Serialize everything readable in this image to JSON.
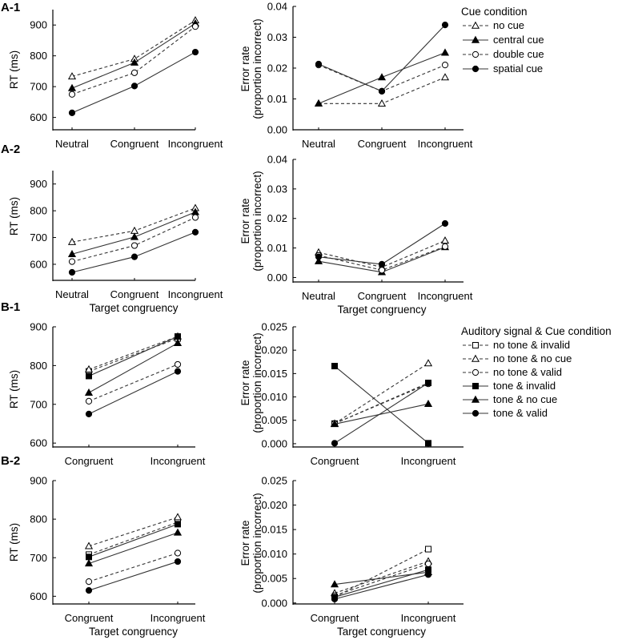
{
  "figure": {
    "legend_a": {
      "title": "Cue condition",
      "entries": [
        "no cue",
        "central cue",
        "double cue",
        "spatial cue"
      ]
    },
    "legend_b": {
      "title": "Auditory signal & Cue condition",
      "entries": [
        "no tone & invalid",
        "no tone & no cue",
        "no tone & valid",
        "tone & invalid",
        "tone & no cue",
        "tone & valid"
      ]
    },
    "series_styles": {
      "no cue": {
        "marker": "triangle",
        "filled": false,
        "dashed": true
      },
      "central cue": {
        "marker": "triangle",
        "filled": true,
        "dashed": false
      },
      "double cue": {
        "marker": "circle",
        "filled": false,
        "dashed": true
      },
      "spatial cue": {
        "marker": "circle",
        "filled": true,
        "dashed": false
      },
      "no tone & invalid": {
        "marker": "square",
        "filled": false,
        "dashed": true
      },
      "no tone & no cue": {
        "marker": "triangle",
        "filled": false,
        "dashed": true
      },
      "no tone & valid": {
        "marker": "circle",
        "filled": false,
        "dashed": true
      },
      "tone & invalid": {
        "marker": "square",
        "filled": true,
        "dashed": false
      },
      "tone & no cue": {
        "marker": "triangle",
        "filled": true,
        "dashed": false
      },
      "tone & valid": {
        "marker": "circle",
        "filled": true,
        "dashed": false
      }
    },
    "colors": {
      "line": "#333333",
      "marker": "#000000",
      "axis": "#000000",
      "background": "#ffffff"
    }
  },
  "chart_data": [
    {
      "id": "a1-rt",
      "panel_label": "A-1",
      "type": "line",
      "categories": [
        "Neutral",
        "Congruent",
        "Incongruent"
      ],
      "ylabel": [
        "RT (ms)"
      ],
      "xlabel": "",
      "ylim": [
        560,
        950
      ],
      "yticks": [
        600,
        700,
        800,
        900
      ],
      "ytick_labels": [
        "600",
        "700",
        "800",
        "900"
      ],
      "series": [
        {
          "name": "no cue",
          "values": [
            733,
            790,
            915
          ]
        },
        {
          "name": "central cue",
          "values": [
            695,
            778,
            905
          ]
        },
        {
          "name": "double cue",
          "values": [
            675,
            745,
            895
          ]
        },
        {
          "name": "spatial cue",
          "values": [
            615,
            702,
            812
          ]
        }
      ]
    },
    {
      "id": "a1-err",
      "type": "line",
      "categories": [
        "Neutral",
        "Congruent",
        "Incongruent"
      ],
      "ylabel": [
        "Error rate",
        "(proportion incorrect)"
      ],
      "xlabel": "",
      "ylim": [
        0,
        0.04
      ],
      "yticks": [
        0,
        0.01,
        0.02,
        0.03,
        0.04
      ],
      "ytick_labels": [
        "0.00",
        "0.01",
        "0.02",
        "0.03",
        "0.04"
      ],
      "series": [
        {
          "name": "no cue",
          "values": [
            0.0085,
            0.0085,
            0.017
          ]
        },
        {
          "name": "central cue",
          "values": [
            0.0085,
            0.017,
            0.025
          ]
        },
        {
          "name": "double cue",
          "values": [
            0.021,
            0.0125,
            0.021
          ]
        },
        {
          "name": "spatial cue",
          "values": [
            0.0213,
            0.0125,
            0.034
          ]
        }
      ]
    },
    {
      "id": "a2-rt",
      "panel_label": "A-2",
      "type": "line",
      "categories": [
        "Neutral",
        "Congruent",
        "Incongruent"
      ],
      "ylabel": [
        "RT (ms)"
      ],
      "xlabel": "Target congruency",
      "ylim": [
        540,
        950
      ],
      "yticks": [
        600,
        700,
        800,
        900
      ],
      "ytick_labels": [
        "600",
        "700",
        "800",
        "900"
      ],
      "series": [
        {
          "name": "no cue",
          "values": [
            683,
            725,
            810
          ]
        },
        {
          "name": "central cue",
          "values": [
            638,
            702,
            795
          ]
        },
        {
          "name": "double cue",
          "values": [
            610,
            670,
            775
          ]
        },
        {
          "name": "spatial cue",
          "values": [
            570,
            628,
            720
          ]
        }
      ]
    },
    {
      "id": "a2-err",
      "type": "line",
      "categories": [
        "Neutral",
        "Congruent",
        "Incongruent"
      ],
      "ylabel": [
        "Error rate",
        "(proportion incorrect)"
      ],
      "xlabel": "Target congruency",
      "ylim": [
        -0.0015,
        0.04
      ],
      "yticks": [
        0,
        0.01,
        0.02,
        0.03,
        0.04
      ],
      "ytick_labels": [
        "0.00",
        "0.01",
        "0.02",
        "0.03",
        "0.04"
      ],
      "series": [
        {
          "name": "no cue",
          "values": [
            0.0085,
            0.0035,
            0.0125
          ]
        },
        {
          "name": "central cue",
          "values": [
            0.0055,
            0.0018,
            0.0103
          ]
        },
        {
          "name": "double cue",
          "values": [
            0.0075,
            0.0025,
            0.0105
          ]
        },
        {
          "name": "spatial cue",
          "values": [
            0.007,
            0.0045,
            0.0183
          ]
        }
      ]
    },
    {
      "id": "b1-rt",
      "panel_label": "B-1",
      "type": "line",
      "categories": [
        "Congruent",
        "Incongruent"
      ],
      "ylabel": [
        "RT (ms)"
      ],
      "xlabel": "",
      "ylim": [
        590,
        900
      ],
      "yticks": [
        600,
        700,
        800,
        900
      ],
      "ytick_labels": [
        "600",
        "700",
        "800",
        "900"
      ],
      "series": [
        {
          "name": "no tone & invalid",
          "values": [
            785,
            870
          ]
        },
        {
          "name": "no tone & no cue",
          "values": [
            790,
            875
          ]
        },
        {
          "name": "no tone & valid",
          "values": [
            708,
            803
          ]
        },
        {
          "name": "tone & invalid",
          "values": [
            773,
            875
          ]
        },
        {
          "name": "tone & no cue",
          "values": [
            730,
            858
          ]
        },
        {
          "name": "tone & valid",
          "values": [
            675,
            785
          ]
        }
      ]
    },
    {
      "id": "b1-err",
      "type": "line",
      "categories": [
        "Congruent",
        "Incongruent"
      ],
      "ylabel": [
        "Error rate",
        "(proportion incorrect)"
      ],
      "xlabel": "",
      "ylim": [
        -0.0007,
        0.025
      ],
      "yticks": [
        0,
        0.005,
        0.01,
        0.015,
        0.02,
        0.025
      ],
      "ytick_labels": [
        "0.000",
        "0.005",
        "0.010",
        "0.015",
        "0.020",
        "0.025"
      ],
      "series": [
        {
          "name": "no tone & invalid",
          "values": [
            0.0043,
            0.013
          ]
        },
        {
          "name": "no tone & no cue",
          "values": [
            0.0043,
            0.0172
          ]
        },
        {
          "name": "no tone & valid",
          "values": [
            0.0043,
            0.0128
          ]
        },
        {
          "name": "tone & invalid",
          "values": [
            0.0166,
            0.0001
          ]
        },
        {
          "name": "tone & no cue",
          "values": [
            0.0042,
            0.0085
          ]
        },
        {
          "name": "tone & valid",
          "values": [
            0.0001,
            0.013
          ]
        }
      ]
    },
    {
      "id": "b2-rt",
      "panel_label": "B-2",
      "type": "line",
      "categories": [
        "Congruent",
        "Incongruent"
      ],
      "ylabel": [
        "RT (ms)"
      ],
      "xlabel": "Target congruency",
      "ylim": [
        580,
        900
      ],
      "yticks": [
        600,
        700,
        800,
        900
      ],
      "ytick_labels": [
        "600",
        "700",
        "800",
        "900"
      ],
      "series": [
        {
          "name": "no tone & invalid",
          "values": [
            708,
            792
          ]
        },
        {
          "name": "no tone & no cue",
          "values": [
            730,
            805
          ]
        },
        {
          "name": "no tone & valid",
          "values": [
            638,
            712
          ]
        },
        {
          "name": "tone & invalid",
          "values": [
            702,
            787
          ]
        },
        {
          "name": "tone & no cue",
          "values": [
            685,
            765
          ]
        },
        {
          "name": "tone & valid",
          "values": [
            615,
            690
          ]
        }
      ]
    },
    {
      "id": "b2-err",
      "type": "line",
      "categories": [
        "Congruent",
        "Incongruent"
      ],
      "ylabel": [
        "Error rate",
        "(proportion incorrect)"
      ],
      "xlabel": "Target congruency",
      "ylim": [
        -0.0002,
        0.025
      ],
      "yticks": [
        0,
        0.005,
        0.01,
        0.015,
        0.02,
        0.025
      ],
      "ytick_labels": [
        "0.000",
        "0.005",
        "0.010",
        "0.015",
        "0.020",
        "0.025"
      ],
      "series": [
        {
          "name": "no tone & invalid",
          "values": [
            0.0012,
            0.011
          ]
        },
        {
          "name": "no tone & no cue",
          "values": [
            0.002,
            0.0085
          ]
        },
        {
          "name": "no tone & valid",
          "values": [
            0.0015,
            0.008
          ]
        },
        {
          "name": "tone & invalid",
          "values": [
            0.0012,
            0.0068
          ]
        },
        {
          "name": "tone & no cue",
          "values": [
            0.0038,
            0.0063
          ]
        },
        {
          "name": "tone & valid",
          "values": [
            0.0008,
            0.0058
          ]
        }
      ]
    }
  ]
}
